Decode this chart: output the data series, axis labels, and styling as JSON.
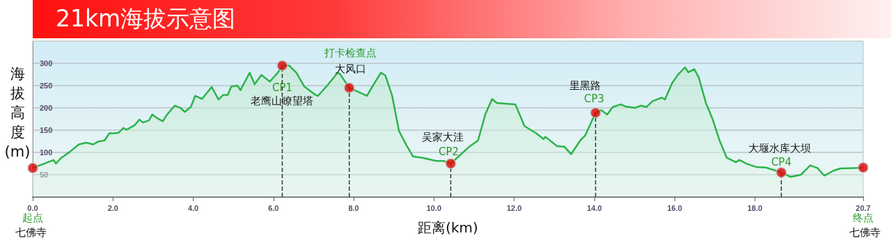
{
  "chart_data": {
    "type": "area",
    "title": "21km海拔示意图",
    "xlabel": "距离(km)",
    "ylabel": "海拔高度(m)",
    "xlim": [
      0,
      20.7
    ],
    "xticks": [
      {
        "value": 0,
        "label": "0.0"
      },
      {
        "value": 2,
        "label": "2.0"
      },
      {
        "value": 4,
        "label": "4.0"
      },
      {
        "value": 6,
        "label": "6.0"
      },
      {
        "value": 8,
        "label": "8.0"
      },
      {
        "value": 10,
        "label": "10.0"
      },
      {
        "value": 12,
        "label": "12.0"
      },
      {
        "value": 14,
        "label": "14.0"
      },
      {
        "value": 16,
        "label": "16.0"
      },
      {
        "value": 18,
        "label": "18.0"
      },
      20.7
    ],
    "ylim": [
      0,
      350
    ],
    "yticks": [
      50,
      100,
      150,
      200,
      250,
      300
    ],
    "grid": "y",
    "series": [
      {
        "color": "#2db34a",
        "marker": "none",
        "x": [
          0,
          0.52,
          0.58,
          0.7,
          0.92,
          1.15,
          1.33,
          1.51,
          1.62,
          1.79,
          1.91,
          2.03,
          2.14,
          2.26,
          2.34,
          2.54,
          2.66,
          2.75,
          2.9,
          2.98,
          3.1,
          3.24,
          3.35,
          3.54,
          3.68,
          3.79,
          3.94,
          4.05,
          4.22,
          4.46,
          4.63,
          4.75,
          4.86,
          4.95,
          5.1,
          5.18,
          5.41,
          5.53,
          5.7,
          5.91,
          6.11,
          6.22,
          6.39,
          6.57,
          6.77,
          7.05,
          7.11,
          7.34,
          7.6,
          7.66,
          7.89,
          8.09,
          8.33,
          8.5,
          8.68,
          8.79,
          8.96,
          9.13,
          9.31,
          9.48,
          9.72,
          10.06,
          10.24,
          10.42,
          10.64,
          10.87,
          11.1,
          11.28,
          11.45,
          11.57,
          12.03,
          12.26,
          12.55,
          12.73,
          12.78,
          13.07,
          13.25,
          13.42,
          13.65,
          13.77,
          14.03,
          14.17,
          14.32,
          14.46,
          14.66,
          14.78,
          15.01,
          15.16,
          15.3,
          15.45,
          15.68,
          15.76,
          15.94,
          16.08,
          16.26,
          16.34,
          16.49,
          16.6,
          16.78,
          16.95,
          17.12,
          17.3,
          17.53,
          17.61,
          17.81,
          18.05,
          18.28,
          18.66,
          18.89,
          19.15,
          19.38,
          19.56,
          19.73,
          19.96,
          20.13,
          20.48,
          20.7
        ],
        "values": [
          65,
          83,
          75,
          87,
          101,
          118,
          122,
          118,
          124,
          127,
          143,
          143,
          144,
          155,
          151,
          161,
          174,
          167,
          172,
          185,
          177,
          170,
          185,
          205,
          200,
          191,
          202,
          227,
          220,
          247,
          219,
          229,
          229,
          248,
          250,
          240,
          279,
          253,
          274,
          259,
          279,
          295,
          295,
          279,
          248,
          229,
          227,
          250,
          279,
          276,
          245,
          237,
          227,
          253,
          279,
          273,
          227,
          148,
          117,
          91,
          88,
          81,
          81,
          75,
          93,
          112,
          127,
          185,
          220,
          211,
          208,
          159,
          143,
          130,
          135,
          114,
          113,
          96,
          127,
          138,
          189,
          195,
          185,
          202,
          208,
          203,
          200,
          205,
          202,
          215,
          223,
          219,
          256,
          274,
          291,
          280,
          287,
          269,
          211,
          174,
          127,
          88,
          78,
          83,
          74,
          67,
          66,
          55,
          45,
          50,
          71,
          65,
          48,
          59,
          64,
          65,
          66
        ]
      },
      {
        "type": "scatter",
        "color": "#e00000",
        "marker": "circle",
        "x": [
          0,
          6.22,
          7.89,
          10.42,
          14.03,
          18.66,
          20.7
        ],
        "values": [
          65,
          295,
          245,
          75,
          189,
          55,
          66
        ]
      }
    ],
    "ref_lines": [
      {
        "axis": "x",
        "value": 6.22,
        "color": "#333333",
        "line_style": "dashed"
      },
      {
        "axis": "x",
        "value": 7.89,
        "color": "#333333",
        "line_style": "dashed"
      },
      {
        "axis": "x",
        "value": 10.42,
        "color": "#333333",
        "line_style": "dashed"
      },
      {
        "axis": "x",
        "value": 14.03,
        "color": "#333333",
        "line_style": "dashed"
      },
      {
        "axis": "x",
        "value": 18.66,
        "color": "#333333",
        "line_style": "dashed"
      }
    ],
    "annotations": [
      {
        "text": "起点",
        "x": 0,
        "y": 0
      },
      {
        "text": "七佛寺",
        "x": 0,
        "y": 0
      },
      {
        "text": "CP1",
        "x": 6.22,
        "y": 295
      },
      {
        "text": "老鹰山瞭望塔",
        "x": 6.22,
        "y": 295
      },
      {
        "text": "打卡检查点",
        "x": 7.89,
        "y": 245
      },
      {
        "text": "大风口",
        "x": 7.89,
        "y": 245
      },
      {
        "text": "吴家大洼",
        "x": 10.42,
        "y": 75
      },
      {
        "text": "CP2",
        "x": 10.42,
        "y": 75
      },
      {
        "text": "里黑路",
        "x": 14.03,
        "y": 189
      },
      {
        "text": "CP3",
        "x": 14.03,
        "y": 189
      },
      {
        "text": "大堰水库大坝",
        "x": 18.66,
        "y": 55
      },
      {
        "text": "CP4",
        "x": 18.66,
        "y": 55
      },
      {
        "text": "终点",
        "x": 20.7,
        "y": 0
      },
      {
        "text": "七佛寺",
        "x": 20.7,
        "y": 0
      }
    ]
  }
}
